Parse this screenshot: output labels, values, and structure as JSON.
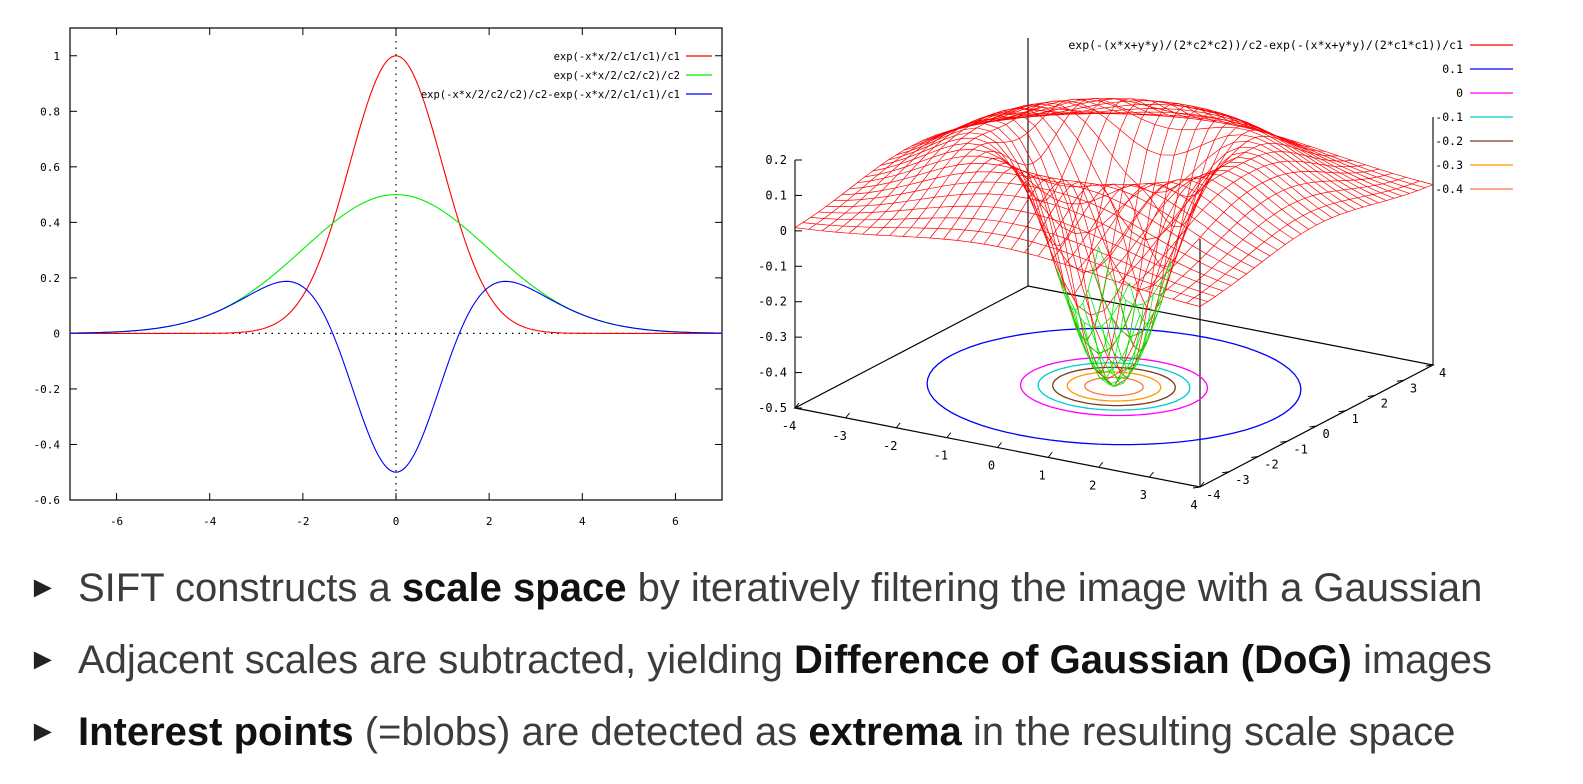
{
  "chart_data": [
    {
      "type": "line",
      "title": "",
      "xlabel": "",
      "ylabel": "",
      "xlim": [
        -7,
        7
      ],
      "ylim": [
        -0.6,
        1.1
      ],
      "xticks": [
        "-6",
        "-4",
        "-2",
        "0",
        "2",
        "4",
        "6"
      ],
      "yticks": [
        "-0.6",
        "-0.4",
        "-0.2",
        "0",
        "0.2",
        "0.4",
        "0.6",
        "0.8",
        "1"
      ],
      "grid": false,
      "zero_axes_dotted": true,
      "legend_position": "top-right",
      "parameters": {
        "c1": 1,
        "c2": 2
      },
      "series": [
        {
          "name": "exp(-x*x/2/c1/c1)/c1",
          "color": "#ff0000",
          "x": [
            -7,
            -6,
            -5,
            -4,
            -3.5,
            -3,
            -2.5,
            -2,
            -1.5,
            -1,
            -0.5,
            0,
            0.5,
            1,
            1.5,
            2,
            2.5,
            3,
            3.5,
            4,
            5,
            6,
            7
          ],
          "y": [
            0,
            0,
            0,
            0.0003,
            0.0022,
            0.0111,
            0.0439,
            0.1353,
            0.3247,
            0.6065,
            0.8825,
            1,
            0.8825,
            0.6065,
            0.3247,
            0.1353,
            0.0439,
            0.0111,
            0.0022,
            0.0003,
            0,
            0,
            0
          ]
        },
        {
          "name": "exp(-x*x/2/c2/c2)/c2",
          "color": "#00ee00",
          "x": [
            -7,
            -6,
            -5,
            -4,
            -3.5,
            -3,
            -2.5,
            -2,
            -1.5,
            -1,
            -0.5,
            0,
            0.5,
            1,
            1.5,
            2,
            2.5,
            3,
            3.5,
            4,
            5,
            6,
            7
          ],
          "y": [
            0.001,
            0.0056,
            0.0219,
            0.0677,
            0.108,
            0.1623,
            0.2288,
            0.3033,
            0.3775,
            0.4412,
            0.4846,
            0.5,
            0.4846,
            0.4412,
            0.3775,
            0.3033,
            0.2288,
            0.1623,
            0.108,
            0.0677,
            0.0219,
            0.0056,
            0.001
          ]
        },
        {
          "name": "exp(-x*x/2/c2/c2)/c2-exp(-x*x/2/c1/c1)/c1",
          "color": "#0000ff",
          "x": [
            -7,
            -6,
            -5,
            -4,
            -3.5,
            -3,
            -2.5,
            -2.3,
            -2,
            -1.5,
            -1,
            -0.5,
            0,
            0.5,
            1,
            1.5,
            2,
            2.3,
            2.5,
            3,
            3.5,
            4,
            5,
            6,
            7
          ],
          "y": [
            0.001,
            0.0056,
            0.0219,
            0.0674,
            0.1058,
            0.1512,
            0.1849,
            0.1868,
            0.168,
            0.0528,
            -0.1653,
            -0.3979,
            -0.5,
            -0.3979,
            -0.1653,
            0.0528,
            0.168,
            0.1868,
            0.1849,
            0.1512,
            0.1058,
            0.0674,
            0.0219,
            0.0056,
            0.001
          ]
        }
      ]
    },
    {
      "type": "surface",
      "title": "",
      "xlim": [
        -4,
        4
      ],
      "ylim": [
        -4,
        4
      ],
      "zlim": [
        -0.5,
        0.2
      ],
      "xticks": [
        "-4",
        "-3",
        "-2",
        "-1",
        "0",
        "1",
        "2",
        "3",
        "4"
      ],
      "yticks": [
        "-4",
        "-3",
        "-2",
        "-1",
        "0",
        "1",
        "2",
        "3",
        "4"
      ],
      "zticks": [
        "0.2",
        "0.1",
        "0",
        "-0.1",
        "-0.2",
        "-0.3",
        "-0.4",
        "-0.5"
      ],
      "legend_position": "top-right",
      "surface": {
        "name": "exp(-(x*x+y*y)/(2*c2*c2))/c2-exp(-(x*x+y*y)/(2*c1*c1))/c1",
        "color": "#ff0000",
        "below_zero_color": "#00ee00"
      },
      "contours": [
        {
          "level": "0.1",
          "color": "#0000ff",
          "radius": 3.2
        },
        {
          "level": "0",
          "color": "#ff00ff",
          "radius": 1.6
        },
        {
          "level": "-0.1",
          "color": "#00cccc",
          "radius": 1.3
        },
        {
          "level": "-0.2",
          "color": "#7a3a1a",
          "radius": 1.05
        },
        {
          "level": "-0.3",
          "color": "#ff9900",
          "radius": 0.8
        },
        {
          "level": "-0.4",
          "color": "#ff7744",
          "radius": 0.5
        }
      ]
    }
  ],
  "bullets": [
    {
      "pre": "SIFT constructs a ",
      "bold": "scale space",
      "post": " by iteratively filtering the image with a Gaussian"
    },
    {
      "pre": "Adjacent scales are subtracted, yielding ",
      "bold": "Difference of Gaussian (DoG)",
      "post": " images"
    },
    {
      "pre": "",
      "bold": "Interest points",
      "post": " (=blobs) are detected as ",
      "bold2": "extrema",
      "post2": " in the resulting scale space"
    }
  ],
  "bullet_marker": "►"
}
